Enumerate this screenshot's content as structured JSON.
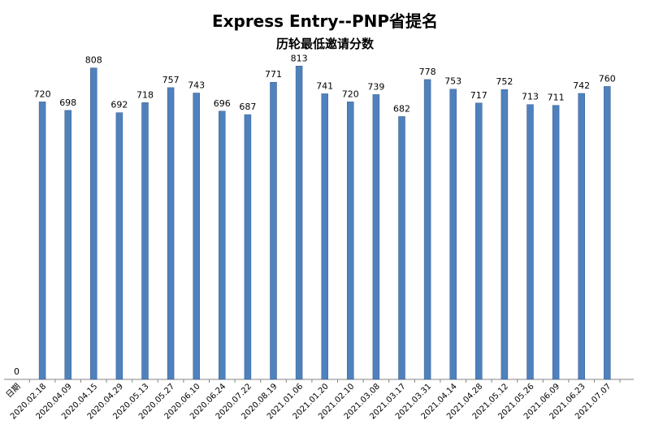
{
  "chart_data": {
    "type": "bar",
    "title": "Express Entry--PNP省提名",
    "subtitle": "历轮最低邀请分数",
    "xlabel": "",
    "ylabel": "",
    "categories": [
      "日期",
      "2020.02.18",
      "2020.04.09",
      "2020.04.15",
      "2020.04.29",
      "2020.05.13",
      "2020.05.27",
      "2020.06.10",
      "2020.06.24",
      "2020.07.22",
      "2020.08.19",
      "2021.01.06",
      "2021.01.20",
      "2021.02.10",
      "2021.03.08",
      "2021.03.17",
      "2021.03.31",
      "2021.04.14",
      "2021.04.28",
      "2021.05.12",
      "2021.05.26",
      "2021.06.09",
      "2021.06.23",
      "2021.07.07"
    ],
    "values": [
      0,
      720,
      698,
      808,
      692,
      718,
      757,
      743,
      696,
      687,
      771,
      813,
      741,
      720,
      739,
      682,
      778,
      753,
      717,
      752,
      713,
      711,
      742,
      760
    ],
    "ylim": [
      0,
      900
    ],
    "grid": false,
    "legend": "none",
    "bar_color": "#4f81bd",
    "bar_edge_color": "#385d8a"
  }
}
